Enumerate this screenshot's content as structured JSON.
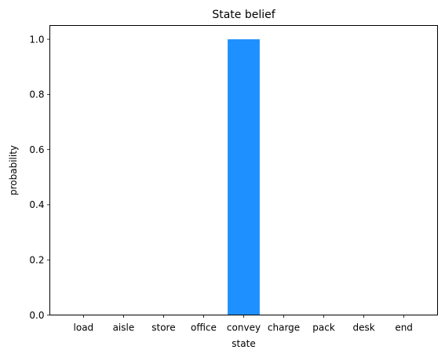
{
  "chart_data": {
    "type": "bar",
    "title": "State belief",
    "xlabel": "state",
    "ylabel": "probability",
    "categories": [
      "load",
      "aisle",
      "store",
      "office",
      "convey",
      "charge",
      "pack",
      "desk",
      "end"
    ],
    "values": [
      0,
      0,
      0,
      0,
      1.0,
      0,
      0,
      0,
      0
    ],
    "ylim": [
      0,
      1.05
    ],
    "yticks": [
      "0.0",
      "0.2",
      "0.4",
      "0.6",
      "0.8",
      "1.0"
    ],
    "bar_color": "#1e90ff",
    "grid": false,
    "legend": "none"
  }
}
